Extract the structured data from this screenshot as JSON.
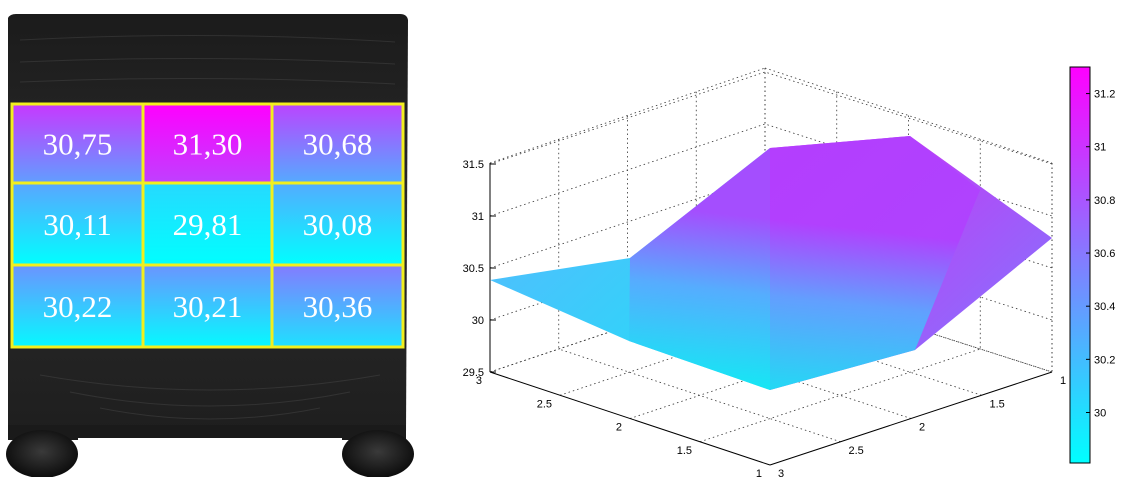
{
  "chart_data": [
    {
      "type": "heatmap",
      "panel": "photo-overlay",
      "rows": [
        [
          "30,75",
          "31,30",
          "30,68"
        ],
        [
          "30,11",
          "29,81",
          "30,08"
        ],
        [
          "30,22",
          "30,21",
          "30,36"
        ]
      ],
      "values": [
        [
          30.75,
          31.3,
          30.68
        ],
        [
          30.11,
          29.81,
          30.08
        ],
        [
          30.22,
          30.21,
          30.36
        ]
      ],
      "grid_color": "#f2ef1e"
    },
    {
      "type": "surface",
      "x_ticks": [
        "1",
        "1.5",
        "2",
        "2.5",
        "3"
      ],
      "y_ticks": [
        "3",
        "2.5",
        "2",
        "1.5",
        "1"
      ],
      "z_ticks": [
        "29.5",
        "30",
        "30.5",
        "31",
        "31.5"
      ],
      "zlim": [
        29.5,
        31.5
      ],
      "grid": true
    },
    {
      "type": "colorbar",
      "ticks": [
        "30",
        "30.2",
        "30.4",
        "30.6",
        "30.8",
        "31",
        "31.2"
      ],
      "range": [
        29.81,
        31.3
      ],
      "colormap": [
        "#00ffff",
        "#ff00ff"
      ]
    }
  ]
}
